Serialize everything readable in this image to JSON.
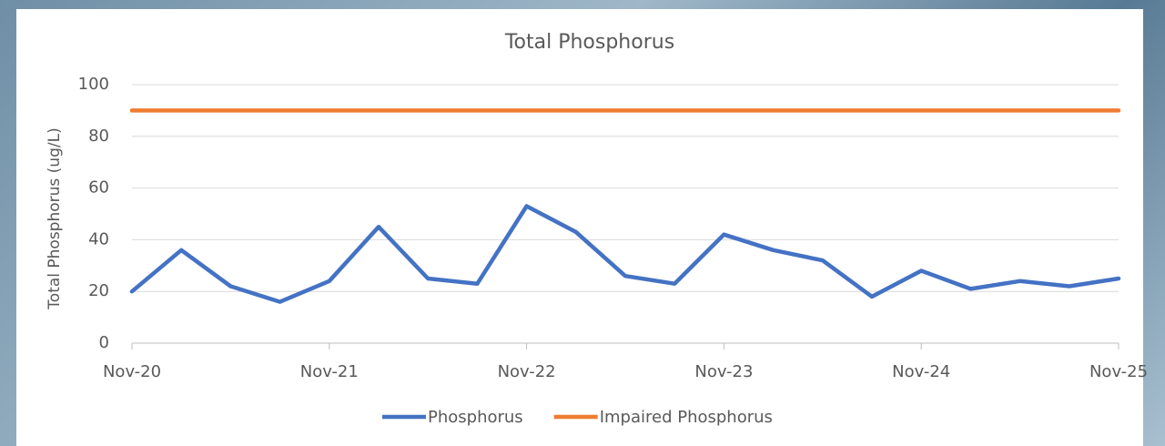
{
  "chart_data": {
    "type": "line",
    "title": "Total Phosphorus",
    "y_label": "Total Phosphorus (ug/L)",
    "series": [
      {
        "name": "Phosphorus",
        "color": "#4472c4",
        "x": [
          "2020-11",
          "2021-02",
          "2021-05",
          "2021-08",
          "2021-11",
          "2022-02",
          "2022-05",
          "2022-08",
          "2022-11",
          "2023-02",
          "2023-05",
          "2023-08",
          "2023-11",
          "2024-02",
          "2024-05",
          "2024-08",
          "2024-11",
          "2025-02",
          "2025-05",
          "2025-08",
          "2025-11"
        ],
        "values": [
          20,
          36,
          22,
          16,
          24,
          45,
          25,
          23,
          53,
          43,
          26,
          23,
          42,
          36,
          32,
          18,
          28,
          21,
          24,
          22,
          25
        ]
      },
      {
        "name": "Impaired Phosphorus",
        "color": "#ed7d31",
        "x": [
          "2020-11",
          "2025-11"
        ],
        "values": [
          90,
          90
        ]
      }
    ],
    "xlim": [
      "2020-11",
      "2025-11"
    ],
    "xticks": [
      {
        "value": "2020-11",
        "label": "Nov-20"
      },
      {
        "value": "2021-11",
        "label": "Nov-21"
      },
      {
        "value": "2022-11",
        "label": "Nov-22"
      },
      {
        "value": "2023-11",
        "label": "Nov-23"
      },
      {
        "value": "2024-11",
        "label": "Nov-24"
      },
      {
        "value": "2025-11",
        "label": "Nov-25"
      }
    ],
    "ylim": [
      0,
      100
    ],
    "yticks": [
      0,
      20,
      40,
      60,
      80,
      100
    ],
    "grid": true,
    "legend": "bottom"
  }
}
